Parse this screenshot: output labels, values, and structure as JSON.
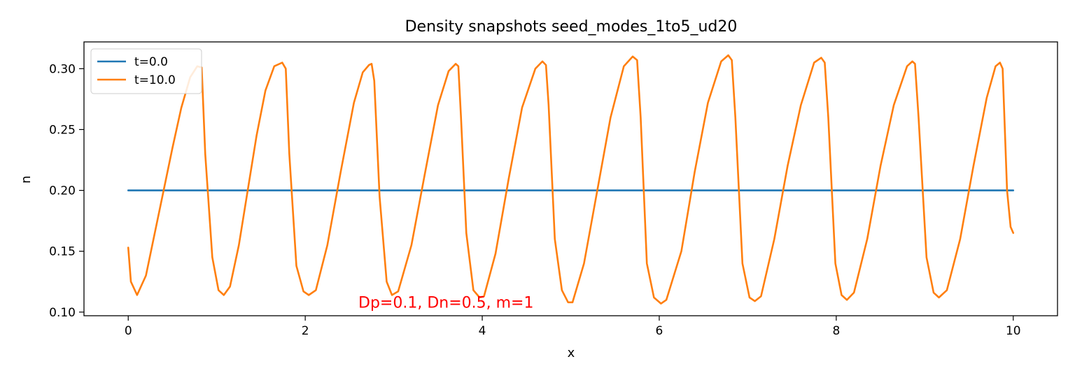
{
  "chart_data": {
    "type": "line",
    "title": "Density snapshots  seed_modes_1to5_ud20",
    "xlabel": "x",
    "ylabel": "n",
    "xlim": [
      -0.5,
      10.5
    ],
    "ylim": [
      0.097,
      0.322
    ],
    "xticks": [
      0,
      2,
      4,
      6,
      8,
      10
    ],
    "xtick_labels": [
      "0",
      "2",
      "4",
      "6",
      "8",
      "10"
    ],
    "yticks": [
      0.1,
      0.15,
      0.2,
      0.25,
      0.3
    ],
    "ytick_labels": [
      "0.10",
      "0.15",
      "0.20",
      "0.25",
      "0.30"
    ],
    "grid": false,
    "legend_position": "upper left",
    "annotation": "Dp=0.1, Dn=0.5, m=1",
    "annotation_color": "#ff0000",
    "series": [
      {
        "name": "t=0.0",
        "color": "#1f77b4",
        "x": [
          0,
          10
        ],
        "y": [
          0.2,
          0.2
        ]
      },
      {
        "name": "t=10.0",
        "color": "#ff7f0e",
        "x": [
          0.0,
          0.03,
          0.1,
          0.2,
          0.3,
          0.4,
          0.5,
          0.6,
          0.7,
          0.78,
          0.83,
          0.87,
          0.95,
          1.02,
          1.08,
          1.15,
          1.25,
          1.35,
          1.45,
          1.55,
          1.65,
          1.74,
          1.78,
          1.82,
          1.9,
          1.98,
          2.04,
          2.12,
          2.25,
          2.4,
          2.55,
          2.65,
          2.72,
          2.75,
          2.78,
          2.84,
          2.92,
          2.98,
          3.05,
          3.2,
          3.35,
          3.5,
          3.62,
          3.7,
          3.73,
          3.76,
          3.82,
          3.9,
          3.97,
          4.02,
          4.15,
          4.3,
          4.45,
          4.6,
          4.68,
          4.72,
          4.75,
          4.82,
          4.9,
          4.97,
          5.02,
          5.15,
          5.3,
          5.45,
          5.6,
          5.7,
          5.75,
          5.79,
          5.86,
          5.94,
          6.02,
          6.08,
          6.25,
          6.4,
          6.55,
          6.7,
          6.78,
          6.82,
          6.86,
          6.94,
          7.02,
          7.08,
          7.15,
          7.3,
          7.45,
          7.6,
          7.75,
          7.83,
          7.87,
          7.91,
          7.99,
          8.06,
          8.12,
          8.2,
          8.35,
          8.5,
          8.65,
          8.8,
          8.86,
          8.89,
          8.93,
          9.02,
          9.1,
          9.16,
          9.25,
          9.4,
          9.55,
          9.7,
          9.8,
          9.85,
          9.88,
          9.93,
          9.97,
          10.0
        ],
        "y": [
          0.153,
          0.125,
          0.114,
          0.13,
          0.165,
          0.2,
          0.235,
          0.268,
          0.293,
          0.302,
          0.301,
          0.23,
          0.145,
          0.118,
          0.114,
          0.121,
          0.155,
          0.2,
          0.245,
          0.282,
          0.302,
          0.305,
          0.3,
          0.23,
          0.138,
          0.117,
          0.114,
          0.118,
          0.155,
          0.215,
          0.272,
          0.297,
          0.303,
          0.304,
          0.29,
          0.195,
          0.125,
          0.114,
          0.117,
          0.155,
          0.213,
          0.27,
          0.298,
          0.304,
          0.302,
          0.26,
          0.165,
          0.118,
          0.112,
          0.113,
          0.148,
          0.21,
          0.268,
          0.3,
          0.306,
          0.303,
          0.27,
          0.16,
          0.118,
          0.108,
          0.108,
          0.14,
          0.2,
          0.26,
          0.302,
          0.31,
          0.307,
          0.26,
          0.14,
          0.112,
          0.107,
          0.11,
          0.15,
          0.215,
          0.272,
          0.306,
          0.311,
          0.307,
          0.26,
          0.14,
          0.112,
          0.109,
          0.113,
          0.16,
          0.22,
          0.27,
          0.305,
          0.309,
          0.305,
          0.26,
          0.14,
          0.114,
          0.11,
          0.116,
          0.16,
          0.22,
          0.27,
          0.302,
          0.306,
          0.304,
          0.26,
          0.145,
          0.116,
          0.112,
          0.118,
          0.16,
          0.22,
          0.276,
          0.302,
          0.305,
          0.3,
          0.2,
          0.17,
          0.165
        ]
      }
    ]
  }
}
